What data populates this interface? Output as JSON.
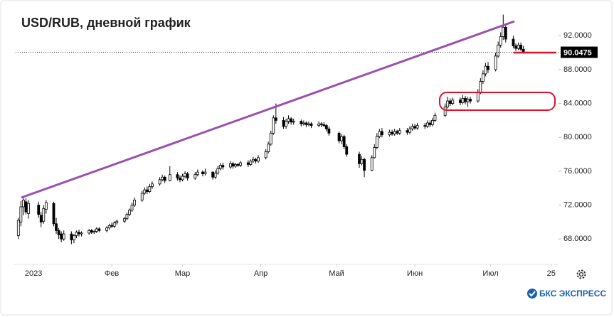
{
  "chart_data": {
    "type": "candlestick",
    "title": "USD/RUB, дневной график",
    "x": [
      -6,
      -5,
      -4,
      -3,
      -2,
      2,
      3,
      4,
      5,
      8,
      9,
      10,
      11,
      12,
      15,
      16,
      17,
      18,
      19,
      22,
      23,
      24,
      25,
      26,
      29,
      30,
      31,
      32,
      33,
      36,
      37,
      38,
      39,
      40,
      43,
      44,
      45,
      46,
      47,
      50,
      51,
      52,
      54,
      57,
      58,
      59,
      60,
      61,
      64,
      65,
      67,
      68,
      71,
      72,
      73,
      74,
      75,
      78,
      79,
      80,
      81,
      82,
      85,
      86,
      87,
      88,
      89,
      92,
      93,
      94,
      95,
      96,
      99,
      100,
      101,
      102,
      103,
      106,
      107,
      108,
      109,
      110,
      113,
      114,
      115,
      116,
      117,
      121,
      122,
      123,
      124,
      129,
      130,
      131,
      134,
      135,
      136,
      137,
      138,
      141,
      142,
      143,
      144,
      145,
      148,
      149,
      150,
      151,
      152,
      155,
      156,
      157,
      158,
      159,
      163,
      164,
      165,
      166,
      169,
      170,
      171,
      172,
      173,
      176,
      177,
      178,
      179,
      180,
      183,
      184,
      185,
      186,
      187,
      190,
      191,
      192,
      193,
      194
    ],
    "open": [
      68.4,
      70.0,
      71.8,
      72.4,
      71.0,
      72.0,
      70.8,
      70.1,
      71.5,
      72.2,
      69.8,
      69.0,
      68.6,
      68.0,
      68.6,
      67.9,
      68.4,
      68.8,
      68.6,
      68.7,
      69.0,
      68.8,
      68.9,
      69.2,
      69.0,
      69.3,
      69.6,
      69.5,
      69.9,
      70.1,
      70.4,
      70.9,
      71.4,
      72.0,
      72.6,
      73.4,
      73.8,
      73.6,
      74.2,
      74.5,
      75.0,
      75.3,
      74.9,
      75.6,
      75.2,
      75.0,
      75.4,
      75.7,
      75.2,
      75.6,
      75.9,
      75.7,
      75.9,
      75.3,
      75.8,
      76.3,
      76.7,
      76.5,
      76.9,
      76.6,
      76.8,
      76.7,
      77.0,
      76.8,
      77.2,
      77.4,
      77.2,
      77.6,
      78.3,
      79.2,
      80.5,
      82.3,
      82.0,
      81.3,
      81.9,
      82.2,
      81.8,
      81.9,
      81.6,
      81.7,
      81.5,
      81.6,
      81.4,
      81.6,
      81.5,
      81.4,
      81.0,
      80.5,
      79.6,
      80.1,
      78.9,
      78.0,
      76.9,
      77.4,
      76.1,
      77.6,
      78.8,
      80.1,
      80.7,
      80.3,
      80.6,
      80.4,
      80.7,
      80.5,
      80.8,
      80.6,
      81.0,
      81.3,
      81.1,
      81.4,
      81.3,
      81.7,
      81.5,
      82.0,
      82.6,
      83.6,
      84.3,
      84.0,
      84.4,
      84.1,
      84.6,
      84.2,
      84.5,
      84.3,
      85.3,
      86.6,
      87.5,
      88.4,
      88.0,
      89.6,
      90.9,
      91.9,
      93.0,
      91.6,
      90.8,
      90.5,
      90.9,
      90.4
    ],
    "high": [
      70.5,
      72.5,
      73.0,
      72.8,
      72.6,
      72.4,
      71.2,
      72.0,
      72.6,
      72.4,
      70.5,
      69.3,
      68.9,
      69.0,
      68.9,
      68.6,
      69.0,
      69.1,
      68.9,
      69.2,
      69.2,
      69.1,
      69.4,
      69.4,
      69.5,
      69.8,
      69.9,
      70.1,
      70.3,
      70.6,
      71.1,
      71.6,
      72.3,
      72.9,
      73.7,
      74.1,
      74.2,
      74.5,
      74.8,
      75.3,
      75.6,
      75.5,
      76.6,
      75.9,
      75.5,
      75.7,
      76.0,
      75.9,
      75.9,
      76.2,
      76.1,
      76.3,
      76.0,
      76.1,
      76.6,
      77.0,
      77.0,
      77.2,
      77.1,
      77.0,
      77.0,
      77.2,
      77.3,
      77.4,
      77.7,
      77.6,
      77.9,
      78.6,
      79.5,
      80.8,
      82.6,
      84.0,
      82.4,
      82.2,
      82.6,
      82.4,
      82.2,
      82.1,
      82.0,
      81.9,
      81.9,
      81.8,
      81.9,
      81.8,
      81.8,
      81.6,
      81.3,
      80.7,
      80.4,
      80.3,
      79.2,
      78.3,
      77.8,
      77.6,
      77.9,
      79.2,
      80.5,
      81.0,
      81.1,
      80.9,
      80.9,
      81.0,
      80.9,
      81.1,
      81.1,
      81.3,
      81.6,
      81.6,
      81.7,
      81.7,
      82.0,
      82.0,
      82.3,
      82.9,
      84.0,
      84.8,
      84.6,
      84.7,
      84.7,
      85.0,
      84.9,
      84.8,
      84.8,
      85.7,
      87.0,
      87.9,
      88.8,
      88.9,
      90.0,
      91.3,
      92.4,
      94.5,
      93.4,
      92.0,
      91.1,
      91.2,
      91.2,
      90.8
    ],
    "low": [
      68.0,
      69.5,
      70.8,
      70.9,
      70.4,
      70.5,
      69.4,
      69.8,
      71.0,
      69.5,
      68.6,
      68.0,
      67.6,
      67.8,
      67.4,
      67.5,
      68.1,
      68.3,
      68.3,
      68.5,
      68.6,
      68.6,
      68.7,
      68.8,
      68.8,
      69.1,
      69.3,
      69.3,
      69.7,
      69.9,
      70.2,
      70.7,
      71.2,
      71.8,
      72.4,
      73.2,
      73.3,
      73.4,
      73.9,
      74.3,
      74.8,
      74.6,
      74.8,
      74.9,
      74.7,
      74.8,
      75.2,
      74.9,
      75.0,
      75.4,
      75.4,
      75.5,
      75.0,
      75.1,
      75.6,
      76.1,
      76.2,
      76.3,
      76.3,
      76.4,
      76.5,
      76.5,
      76.5,
      76.6,
      77.0,
      76.9,
      77.0,
      77.4,
      78.1,
      79.0,
      80.3,
      81.6,
      81.0,
      81.0,
      81.6,
      81.5,
      81.5,
      81.3,
      81.4,
      81.2,
      81.3,
      81.1,
      81.2,
      81.2,
      81.2,
      80.7,
      80.2,
      79.3,
      79.2,
      78.6,
      77.7,
      76.4,
      76.7,
      75.3,
      76.0,
      77.5,
      78.6,
      79.9,
      80.0,
      80.1,
      80.2,
      80.2,
      80.3,
      80.3,
      80.3,
      80.4,
      80.8,
      80.9,
      80.9,
      81.0,
      81.1,
      81.2,
      81.3,
      81.8,
      82.4,
      83.4,
      83.7,
      83.8,
      83.8,
      83.9,
      83.9,
      83.6,
      84.0,
      84.1,
      85.1,
      86.3,
      87.2,
      87.6,
      87.8,
      89.4,
      90.6,
      91.5,
      91.2,
      90.5,
      90.2,
      90.3,
      90.2,
      89.9
    ],
    "close": [
      70.2,
      71.8,
      72.6,
      71.2,
      72.2,
      70.9,
      70.0,
      71.6,
      72.3,
      69.8,
      69.0,
      68.5,
      68.0,
      68.6,
      67.9,
      68.4,
      68.8,
      68.6,
      68.7,
      69.0,
      68.8,
      68.9,
      69.2,
      69.0,
      69.3,
      69.6,
      69.5,
      69.9,
      70.1,
      70.4,
      70.9,
      71.4,
      72.0,
      72.6,
      73.4,
      73.8,
      73.6,
      74.2,
      74.5,
      75.0,
      75.3,
      74.9,
      75.6,
      75.2,
      75.0,
      75.4,
      75.7,
      75.2,
      75.6,
      75.9,
      75.7,
      75.9,
      75.3,
      75.8,
      76.3,
      76.7,
      76.5,
      76.9,
      76.6,
      76.8,
      76.7,
      77.0,
      76.8,
      77.2,
      77.4,
      77.2,
      77.6,
      78.3,
      79.2,
      80.5,
      82.3,
      82.0,
      81.3,
      81.9,
      82.2,
      81.8,
      81.9,
      81.6,
      81.7,
      81.5,
      81.6,
      81.4,
      81.6,
      81.5,
      81.4,
      81.0,
      80.5,
      79.6,
      80.1,
      78.9,
      78.0,
      76.9,
      77.4,
      76.1,
      77.6,
      78.8,
      80.1,
      80.7,
      80.3,
      80.6,
      80.4,
      80.7,
      80.5,
      80.8,
      80.6,
      81.0,
      81.3,
      81.1,
      81.4,
      81.3,
      81.7,
      81.5,
      82.0,
      82.6,
      83.6,
      84.3,
      84.0,
      84.4,
      84.1,
      84.6,
      84.2,
      84.5,
      84.3,
      85.3,
      86.6,
      87.5,
      88.4,
      88.0,
      89.6,
      90.9,
      91.9,
      93.0,
      91.6,
      90.8,
      90.5,
      90.9,
      90.4,
      90.0475
    ],
    "up_color": "#ffffff",
    "down_color": "#000000",
    "xlim": [
      -8.2,
      207.9
    ],
    "xticks": [
      {
        "value": 0,
        "label": "2023"
      },
      {
        "value": 31,
        "label": "Фев"
      },
      {
        "value": 59,
        "label": "Мар"
      },
      {
        "value": 90,
        "label": "Апр"
      },
      {
        "value": 120,
        "label": "Май"
      },
      {
        "value": 151,
        "label": "Июн"
      },
      {
        "value": 181,
        "label": "Июл"
      },
      {
        "value": 205,
        "label": "25"
      }
    ],
    "ylim": [
      65,
      95.8
    ],
    "yticks": [
      {
        "value": 68,
        "label": "68.0000"
      },
      {
        "value": 72,
        "label": "72.0000"
      },
      {
        "value": 76,
        "label": "76.0000"
      },
      {
        "value": 80,
        "label": "80.0000"
      },
      {
        "value": 84,
        "label": "84.0000"
      },
      {
        "value": 88,
        "label": "88.0000"
      },
      {
        "value": 92,
        "label": "92.0000"
      }
    ],
    "last_price": 90.0475,
    "grid": false
  },
  "brand": "БКС ЭКСПРЕСС"
}
